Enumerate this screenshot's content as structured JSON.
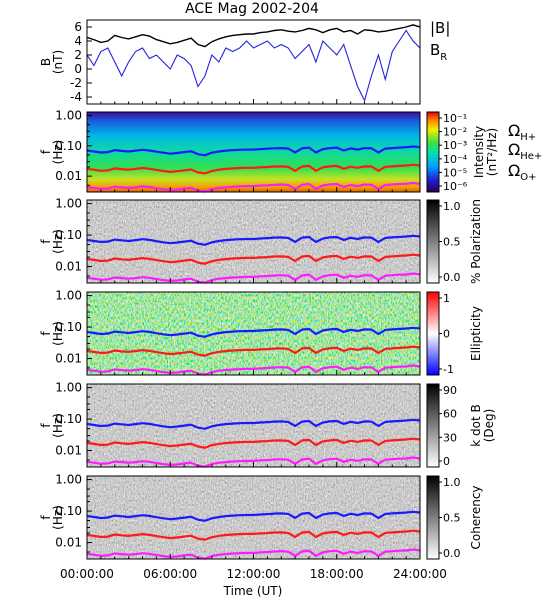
{
  "title": "ACE Mag 2002-204",
  "x_axis": {
    "label": "Time (UT)",
    "range_hours": [
      0,
      24
    ],
    "ticks": [
      {
        "h": 0,
        "label": "00:00:00"
      },
      {
        "h": 6,
        "label": "06:00:00"
      },
      {
        "h": 12,
        "label": "12:00:00"
      },
      {
        "h": 18,
        "label": "18:00:00"
      },
      {
        "h": 24,
        "label": "24:00:00"
      }
    ]
  },
  "freq_ticks": [
    {
      "f": 1.0,
      "label": "1.00"
    },
    {
      "f": 0.1,
      "label": "0.10"
    },
    {
      "f": 0.01,
      "label": "0.01"
    }
  ],
  "legends": {
    "B": {
      "name": "|B|",
      "color": "#000000"
    },
    "BR": {
      "name": "B",
      "sub": "R",
      "color": "#2222dd"
    },
    "H": {
      "name": "Ω",
      "sub": "H+",
      "color": "#1a1aff"
    },
    "He": {
      "name": "Ω",
      "sub": "He+",
      "color": "#ff1a1a"
    },
    "O": {
      "name": "Ω",
      "sub": "O+",
      "color": "#ff1aff"
    }
  },
  "panels": [
    {
      "id": "b",
      "ylabel1": "B",
      "ylabel2": "(nT)",
      "yticks": [
        "6",
        "4",
        "2",
        "0",
        "-2",
        "-4"
      ]
    },
    {
      "id": "intensity",
      "ylabel1": "f",
      "ylabel2": "(Hz)",
      "cb_label1": "Intensity",
      "cb_label2": "(nT²/Hz)",
      "cb_ticks": [
        "10⁻¹",
        "10⁻²",
        "10⁻³",
        "10⁻⁴",
        "10⁻⁵",
        "10⁻⁶"
      ]
    },
    {
      "id": "polarization",
      "ylabel1": "f",
      "ylabel2": "(Hz)",
      "cb_label1": "% Polarization",
      "cb_label2": "",
      "cb_ticks": [
        "1.0",
        "0.5",
        "0.0"
      ]
    },
    {
      "id": "ellipticity",
      "ylabel1": "f",
      "ylabel2": "(Hz)",
      "cb_label1": "Ellipticity",
      "cb_label2": "",
      "cb_ticks": [
        "1",
        "0",
        "-1"
      ]
    },
    {
      "id": "kdotb",
      "ylabel1": "f",
      "ylabel2": "(Hz)",
      "cb_label1": "k dot B",
      "cb_label2": "(Deg)",
      "cb_ticks": [
        "90",
        "60",
        "30",
        "0"
      ]
    },
    {
      "id": "coherency",
      "ylabel1": "f",
      "ylabel2": "(Hz)",
      "cb_label1": "Coherency",
      "cb_label2": "",
      "cb_ticks": [
        "1.0",
        "0.5",
        "0.0"
      ]
    }
  ],
  "chart_data": [
    {
      "type": "line",
      "ylabel": "B (nT)",
      "ylim": [
        -5,
        7
      ],
      "x_hours": [
        0,
        0.5,
        1,
        1.5,
        2,
        2.5,
        3,
        3.5,
        4,
        4.5,
        5,
        5.5,
        6,
        6.5,
        7,
        7.5,
        8,
        8.5,
        9,
        9.5,
        10,
        10.5,
        11,
        11.5,
        12,
        12.5,
        13,
        13.5,
        14,
        14.5,
        15,
        15.5,
        16,
        16.5,
        17,
        17.5,
        18,
        18.5,
        19,
        19.5,
        20,
        20.5,
        21,
        21.5,
        22,
        22.5,
        23,
        23.5,
        24
      ],
      "series": [
        {
          "name": "|B|",
          "values": [
            4.5,
            4.2,
            3.8,
            4.0,
            4.8,
            4.5,
            4.3,
            4.6,
            4.9,
            4.7,
            4.2,
            3.9,
            3.6,
            3.8,
            4.1,
            4.4,
            3.5,
            3.2,
            3.9,
            4.3,
            4.6,
            4.8,
            4.9,
            5.0,
            5.0,
            5.2,
            5.3,
            5.5,
            5.6,
            5.4,
            5.3,
            5.5,
            5.8,
            5.6,
            5.2,
            5.6,
            5.8,
            5.3,
            5.5,
            5.0,
            5.6,
            5.5,
            5.3,
            5.4,
            5.6,
            5.8,
            6.0,
            6.3,
            6.0
          ]
        },
        {
          "name": "B_R",
          "values": [
            2.0,
            0.5,
            2.5,
            3.0,
            1.0,
            -1.0,
            1.0,
            2.5,
            3.0,
            1.5,
            2.0,
            1.0,
            0.0,
            2.0,
            1.5,
            0.5,
            -2.5,
            -1.0,
            2.0,
            1.0,
            3.0,
            2.5,
            3.0,
            4.0,
            3.0,
            3.5,
            4.0,
            3.0,
            3.5,
            3.0,
            1.5,
            2.5,
            3.5,
            1.0,
            4.0,
            3.0,
            2.0,
            3.5,
            0.5,
            -2.5,
            -4.5,
            -1.0,
            2.0,
            -1.5,
            2.5,
            4.0,
            5.5,
            4.0,
            3.0
          ]
        }
      ]
    },
    {
      "type": "line",
      "ylabel": "f (Hz)",
      "yscale": "log",
      "ylim": [
        0.003,
        1.3
      ],
      "x_hours": [
        0,
        0.5,
        1,
        1.5,
        2,
        2.5,
        3,
        3.5,
        4,
        4.5,
        5,
        5.5,
        6,
        6.5,
        7,
        7.5,
        8,
        8.5,
        9,
        9.5,
        10,
        10.5,
        11,
        11.5,
        12,
        12.5,
        13,
        13.5,
        14,
        14.5,
        15,
        15.5,
        16,
        16.5,
        17,
        17.5,
        18,
        18.5,
        19,
        19.5,
        20,
        20.5,
        21,
        21.5,
        22,
        22.5,
        23,
        23.5,
        24
      ],
      "series": [
        {
          "name": "Ω H+",
          "values": [
            0.07,
            0.065,
            0.06,
            0.062,
            0.072,
            0.068,
            0.065,
            0.069,
            0.074,
            0.07,
            0.064,
            0.059,
            0.055,
            0.058,
            0.062,
            0.066,
            0.053,
            0.049,
            0.059,
            0.065,
            0.069,
            0.072,
            0.074,
            0.075,
            0.075,
            0.078,
            0.08,
            0.083,
            0.084,
            0.081,
            0.06,
            0.083,
            0.087,
            0.06,
            0.078,
            0.084,
            0.087,
            0.07,
            0.082,
            0.075,
            0.084,
            0.083,
            0.06,
            0.081,
            0.084,
            0.087,
            0.09,
            0.095,
            0.09
          ]
        },
        {
          "name": "Ω He+",
          "values": [
            0.0175,
            0.0163,
            0.015,
            0.0155,
            0.018,
            0.017,
            0.0163,
            0.0173,
            0.0185,
            0.0175,
            0.016,
            0.0148,
            0.0138,
            0.0145,
            0.0155,
            0.0165,
            0.0133,
            0.0123,
            0.0148,
            0.0163,
            0.0173,
            0.018,
            0.0185,
            0.0188,
            0.0188,
            0.0195,
            0.02,
            0.0208,
            0.021,
            0.0203,
            0.015,
            0.0208,
            0.0218,
            0.015,
            0.0195,
            0.021,
            0.0218,
            0.0175,
            0.0205,
            0.0188,
            0.021,
            0.0208,
            0.015,
            0.0203,
            0.021,
            0.0218,
            0.0225,
            0.0238,
            0.0225
          ]
        },
        {
          "name": "Ω O+",
          "values": [
            0.0044,
            0.0041,
            0.0038,
            0.0039,
            0.0045,
            0.0043,
            0.0041,
            0.0043,
            0.0046,
            0.0044,
            0.004,
            0.0037,
            0.0035,
            0.0036,
            0.0039,
            0.0041,
            0.0033,
            0.0031,
            0.0037,
            0.0041,
            0.0043,
            0.0045,
            0.0046,
            0.0047,
            0.0047,
            0.0049,
            0.005,
            0.0052,
            0.0053,
            0.0051,
            0.0038,
            0.0052,
            0.0055,
            0.0038,
            0.0049,
            0.0053,
            0.0055,
            0.0044,
            0.0051,
            0.0047,
            0.0053,
            0.0052,
            0.0038,
            0.0051,
            0.0053,
            0.0055,
            0.0056,
            0.006,
            0.0056
          ]
        }
      ]
    }
  ]
}
